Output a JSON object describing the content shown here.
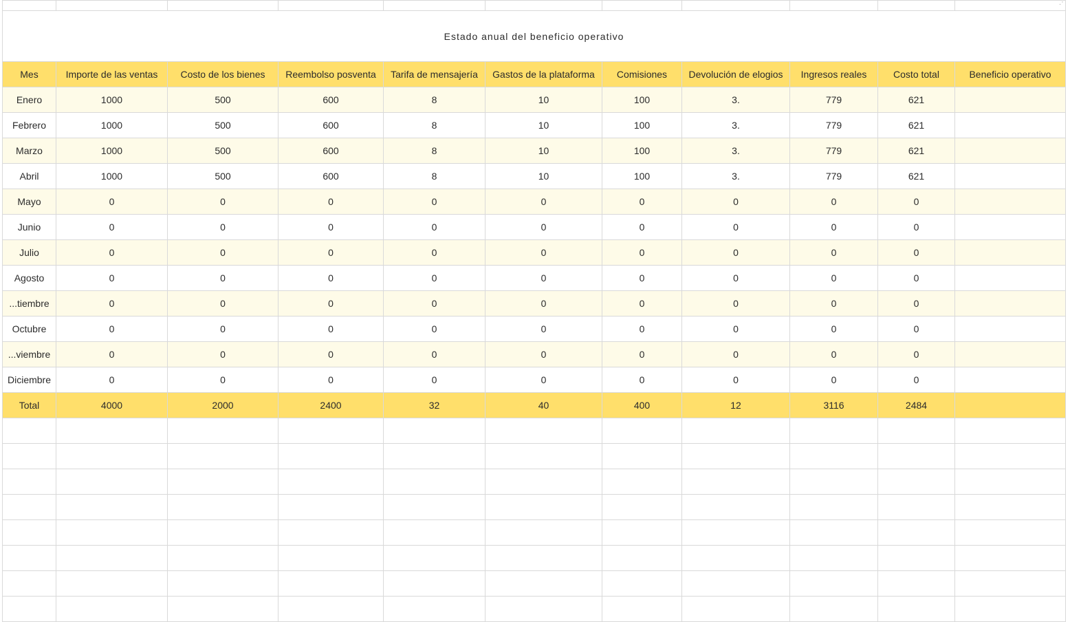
{
  "sheet": {
    "title": "Estado anual del beneficio operativo",
    "headers": [
      "Mes",
      "Importe de las ventas",
      "Costo de los bienes",
      "Reembolso posventa",
      "Tarifa de mensajería",
      "Gastos de la plataforma",
      "Comisiones",
      "Devolución de elogios",
      "Ingresos reales",
      "Costo total",
      "Beneficio operativo"
    ],
    "rows": [
      [
        "Enero",
        "1000",
        "500",
        "600",
        "8",
        "10",
        "100",
        "3.",
        "779",
        "621",
        ""
      ],
      [
        "Febrero",
        "1000",
        "500",
        "600",
        "8",
        "10",
        "100",
        "3.",
        "779",
        "621",
        ""
      ],
      [
        "Marzo",
        "1000",
        "500",
        "600",
        "8",
        "10",
        "100",
        "3.",
        "779",
        "621",
        ""
      ],
      [
        "Abril",
        "1000",
        "500",
        "600",
        "8",
        "10",
        "100",
        "3.",
        "779",
        "621",
        ""
      ],
      [
        "Mayo",
        "0",
        "0",
        "0",
        "0",
        "0",
        "0",
        "0",
        "0",
        "0",
        ""
      ],
      [
        "Junio",
        "0",
        "0",
        "0",
        "0",
        "0",
        "0",
        "0",
        "0",
        "0",
        ""
      ],
      [
        "Julio",
        "0",
        "0",
        "0",
        "0",
        "0",
        "0",
        "0",
        "0",
        "0",
        ""
      ],
      [
        "Agosto",
        "0",
        "0",
        "0",
        "0",
        "0",
        "0",
        "0",
        "0",
        "0",
        ""
      ],
      [
        "...tiembre",
        "0",
        "0",
        "0",
        "0",
        "0",
        "0",
        "0",
        "0",
        "0",
        ""
      ],
      [
        "Octubre",
        "0",
        "0",
        "0",
        "0",
        "0",
        "0",
        "0",
        "0",
        "0",
        ""
      ],
      [
        "...viembre",
        "0",
        "0",
        "0",
        "0",
        "0",
        "0",
        "0",
        "0",
        "0",
        ""
      ],
      [
        "Diciembre",
        "0",
        "0",
        "0",
        "0",
        "0",
        "0",
        "0",
        "0",
        "0",
        ""
      ]
    ],
    "total": [
      "Total",
      "4000",
      "2000",
      "2400",
      "32",
      "40",
      "400",
      "12",
      "3116",
      "2484",
      ""
    ],
    "colors": {
      "header_fill": "#ffdf6b",
      "band_fill": "#fefbe8",
      "grid_line": "#d9d9d9"
    }
  }
}
